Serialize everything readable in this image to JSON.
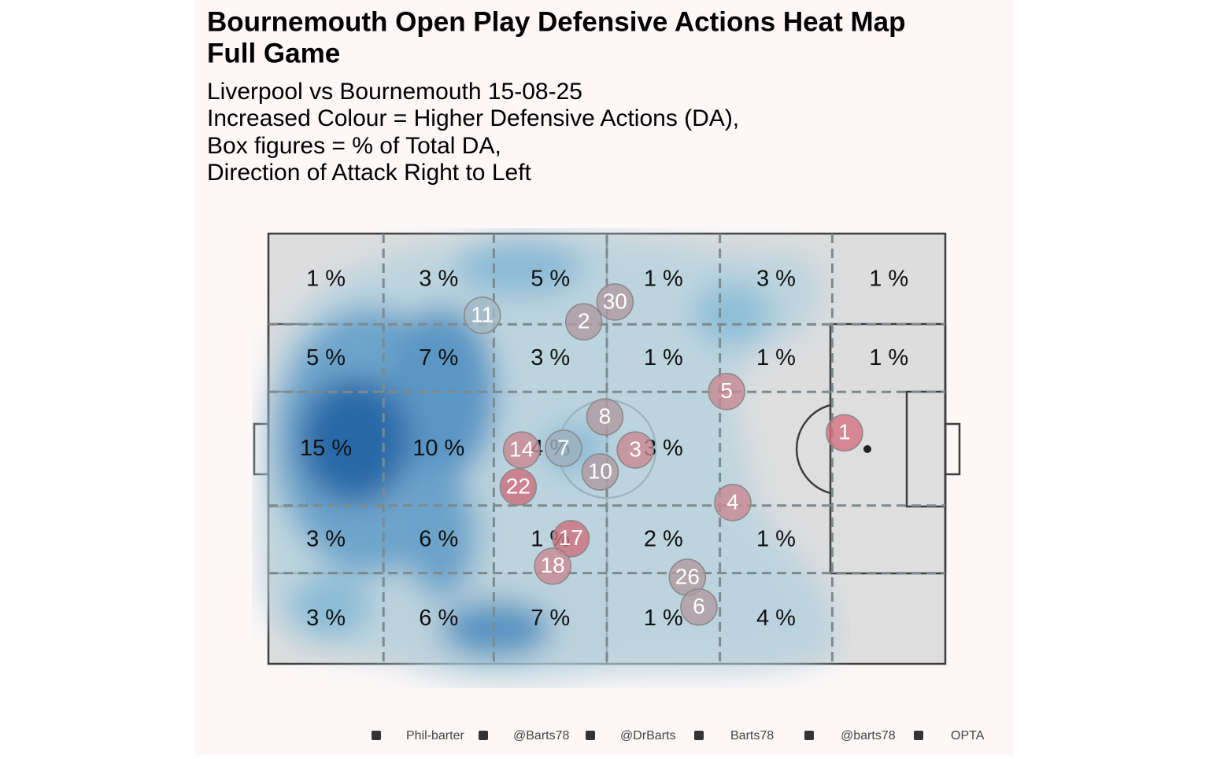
{
  "header": {
    "title": [
      "Bournemouth  Open Play Defensive Actions Heat Map",
      "Full Game"
    ],
    "subtitle": [
      "Liverpool vs Bournemouth 15-08-25",
      "Increased Colour = Higher Defensive Actions (DA),",
      "Box figures = % of Total DA,",
      "Direction of Attack Right to Left"
    ]
  },
  "chart_data": {
    "type": "pitch-heatmap",
    "zones": {
      "values": [
        [
          1,
          3,
          5,
          1,
          3,
          1
        ],
        [
          5,
          7,
          3,
          1,
          1,
          1
        ],
        [
          15,
          10,
          4,
          3,
          null,
          null
        ],
        [
          3,
          6,
          1,
          2,
          1,
          null
        ],
        [
          3,
          6,
          7,
          1,
          4,
          null
        ]
      ],
      "value_labels": [
        [
          "1 %",
          "3 %",
          "5 %",
          "1 %",
          "3 %",
          "1 %"
        ],
        [
          "5 %",
          "7 %",
          "3 %",
          "1 %",
          "1 %",
          "1 %"
        ],
        [
          "15 %",
          "10 %",
          "4 %",
          "3 %",
          null,
          null
        ],
        [
          "3 %",
          "6 %",
          "1 %",
          "2 %",
          "1 %",
          null
        ],
        [
          "3 %",
          "6 %",
          "7 %",
          "1 %",
          "4 %",
          null
        ]
      ]
    },
    "players": [
      {
        "label": "30",
        "x": 51.2,
        "y": 15.9,
        "color": "#b09aa0"
      },
      {
        "label": "2",
        "x": 46.6,
        "y": 20.5,
        "color": "#b09aa0"
      },
      {
        "label": "11",
        "x": 31.6,
        "y": 19.0,
        "color": "#a3b8c6"
      },
      {
        "label": "8",
        "x": 49.7,
        "y": 42.6,
        "color": "#b09aa0"
      },
      {
        "label": "5",
        "x": 67.7,
        "y": 36.7,
        "color": "#c98892"
      },
      {
        "label": "1",
        "x": 85.1,
        "y": 46.3,
        "color": "#d2707f"
      },
      {
        "label": "14",
        "x": 37.4,
        "y": 50.3,
        "color": "#c98892"
      },
      {
        "label": "7",
        "x": 43.6,
        "y": 49.9,
        "color": "#9fb0bd"
      },
      {
        "label": "3",
        "x": 54.2,
        "y": 50.3,
        "color": "#c98892"
      },
      {
        "label": "10",
        "x": 49.0,
        "y": 55.4,
        "color": "#b09aa0"
      },
      {
        "label": "22",
        "x": 36.9,
        "y": 58.9,
        "color": "#cf6e7c"
      },
      {
        "label": "4",
        "x": 68.6,
        "y": 62.5,
        "color": "#c98892"
      },
      {
        "label": "17",
        "x": 44.7,
        "y": 70.9,
        "color": "#cf6e7c"
      },
      {
        "label": "18",
        "x": 42.0,
        "y": 77.3,
        "color": "#c98892"
      },
      {
        "label": "26",
        "x": 61.9,
        "y": 79.9,
        "color": "#b09aa0"
      },
      {
        "label": "6",
        "x": 63.6,
        "y": 86.8,
        "color": "#b09aa0"
      }
    ]
  },
  "footer": {
    "credits": [
      "Phil-barter",
      "@Barts78",
      "@DrBarts",
      "Barts78",
      "@barts78",
      "OPTA"
    ]
  }
}
